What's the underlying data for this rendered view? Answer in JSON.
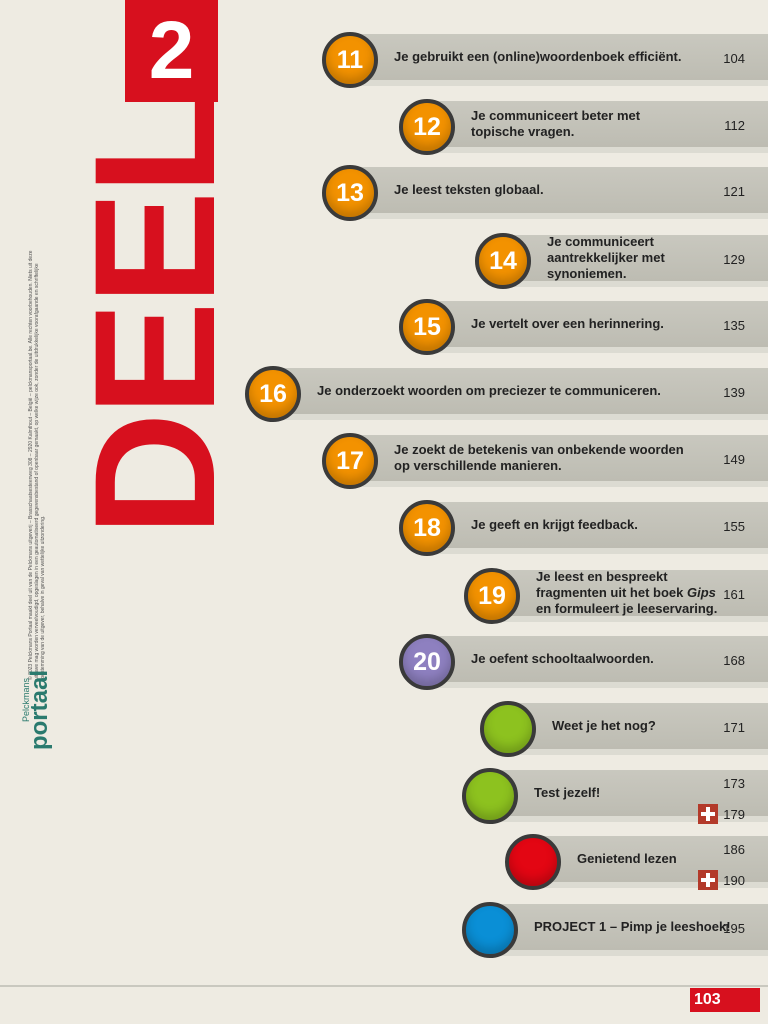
{
  "part": {
    "word": "DEEL",
    "number": "2"
  },
  "entries": [
    {
      "number": "11",
      "title": "Je gebruikt een (online)woordenboek efficiënt.",
      "pages": [
        "104"
      ],
      "color": "#f39200"
    },
    {
      "number": "12",
      "title": "Je communiceert beter met topische vragen.",
      "pages": [
        "112"
      ],
      "color": "#f39200"
    },
    {
      "number": "13",
      "title": "Je leest teksten globaal.",
      "pages": [
        "121"
      ],
      "color": "#f39200"
    },
    {
      "number": "14",
      "title": "Je communiceert aantrekkelijker met synoniemen.",
      "pages": [
        "129"
      ],
      "color": "#f39200"
    },
    {
      "number": "15",
      "title": "Je vertelt over een herinnering.",
      "pages": [
        "135"
      ],
      "color": "#f39200"
    },
    {
      "number": "16",
      "title": "Je onderzoekt woorden om preciezer te communiceren.",
      "pages": [
        "139"
      ],
      "color": "#f39200"
    },
    {
      "number": "17",
      "title": "Je zoekt de betekenis van onbekende woorden op verschillende manieren.",
      "pages": [
        "149"
      ],
      "color": "#f39200"
    },
    {
      "number": "18",
      "title": "Je geeft en krijgt feedback.",
      "pages": [
        "155"
      ],
      "color": "#f39200"
    },
    {
      "number": "19",
      "title": [
        "Je leest en bespreekt fragmenten uit het boek ",
        "Gips",
        " en formuleert je leeservaring."
      ],
      "italic_segment": 1,
      "pages": [
        "161"
      ],
      "color": "#f39200"
    },
    {
      "number": "20",
      "title": "Je oefent schooltaalwoorden.",
      "pages": [
        "168"
      ],
      "color": "#8e80c0"
    },
    {
      "title": "Weet je het nog?",
      "pages": [
        "171"
      ],
      "color": "#8dc21f"
    },
    {
      "title": "Test jezelf!",
      "pages": [
        "173"
      ],
      "extra_pages": [
        "179"
      ],
      "color": "#8dc21f"
    },
    {
      "title": "Genietend lezen",
      "pages": [
        "186"
      ],
      "extra_pages": [
        "190"
      ],
      "color": "#e30613"
    },
    {
      "title": "PROJECT 1 – Pimp je leeshoek!",
      "pages": [
        "195"
      ],
      "color": "#0a8fd6"
    }
  ],
  "sidebar": {
    "brand": "Pelckmans",
    "logo": "portaal",
    "copyright": "© 2023 Pelckmans Portaal maakt deel uit van de Pelckmans uitgeverij – Brasschaatsesteenweg 308 – 2920 Kalmthout – België – pelckmansportaal.be. Alle rechten voorbehouden. Niets uit deze uitgave mag worden verveelvoudigd, opgeslagen in een geautomatiseerd gegevensbestand of openbaar gemaakt, op welke wijze ook, zonder de uitdrukkelijke voorafgaande en schriftelijke toestemming van de uitgever, behalve in geval van wettelijke uitzondering."
  },
  "footer": {
    "page": "103"
  }
}
